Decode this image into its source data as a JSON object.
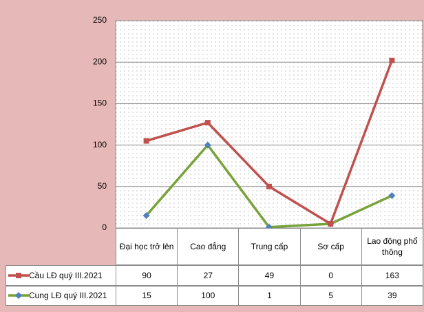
{
  "chart_data": {
    "type": "line",
    "stacked": true,
    "categories": [
      "Đại học trở lên",
      "Cao đẳng",
      "Trung cấp",
      "Sơ cấp",
      "Lao động phổ thông"
    ],
    "series": [
      {
        "name": "Cầu LĐ quý III.2021",
        "color": "#c0504d",
        "marker": "square",
        "marker_color": "#c0504d",
        "values": [
          90,
          27,
          49,
          0,
          163
        ]
      },
      {
        "name": "Cung LĐ quý III.2021",
        "color": "#77a33a",
        "marker": "diamond",
        "marker_color": "#4f81bd",
        "values": [
          15,
          100,
          1,
          5,
          39
        ]
      }
    ],
    "ylim": [
      0,
      250
    ],
    "yticks": [
      0,
      50,
      100,
      150,
      200,
      250
    ],
    "grid": true,
    "data_table": true
  }
}
